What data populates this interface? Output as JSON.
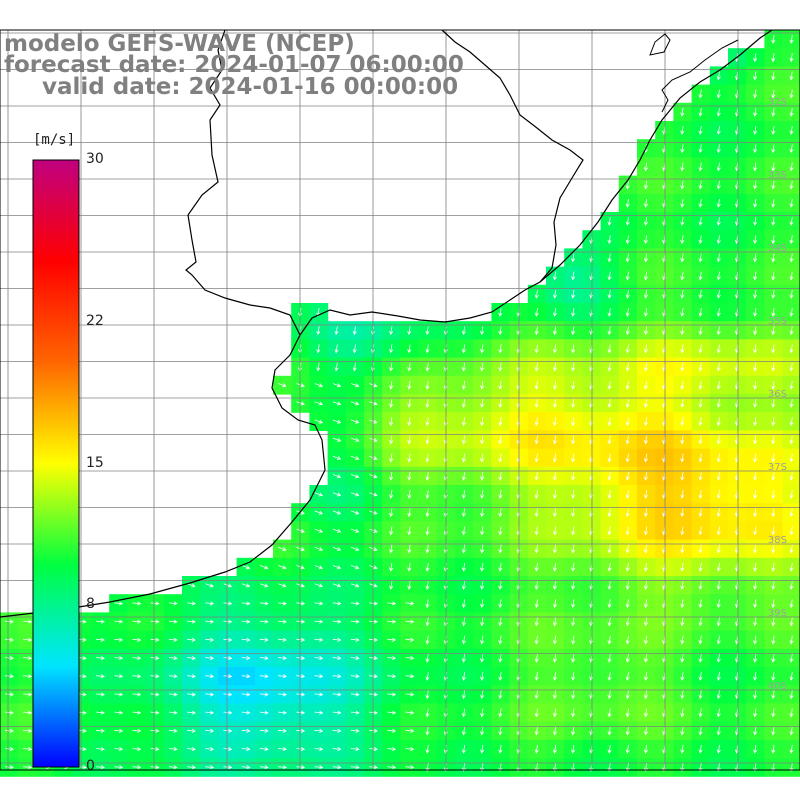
{
  "header": {
    "title": "modelo GEFS-WAVE (NCEP)",
    "forecast": "forecast date: 2024-01-07 06:00:00",
    "valid": "valid date: 2024-01-16 00:00:00"
  },
  "colorbar": {
    "unit": "[m/s]",
    "min": 0,
    "max": 30,
    "ticks": [
      {
        "label": "30",
        "value": 30
      },
      {
        "label": "22",
        "value": 22
      },
      {
        "label": "15",
        "value": 15
      },
      {
        "label": "8",
        "value": 8
      },
      {
        "label": "0",
        "value": 0
      }
    ],
    "stops": [
      "#0000ff",
      "#00e5ff",
      "#00ff40",
      "#ffff00",
      "#ff6600",
      "#ff0000",
      "#c00080"
    ]
  },
  "lat_labels": [
    "32S",
    "33S",
    "34S",
    "35S",
    "36S",
    "37S",
    "38S",
    "39S",
    "40S"
  ],
  "colors": {
    "land": "#ffffff",
    "grid": "#808080",
    "coast": "#000000",
    "arrow": "#ffffff"
  }
}
